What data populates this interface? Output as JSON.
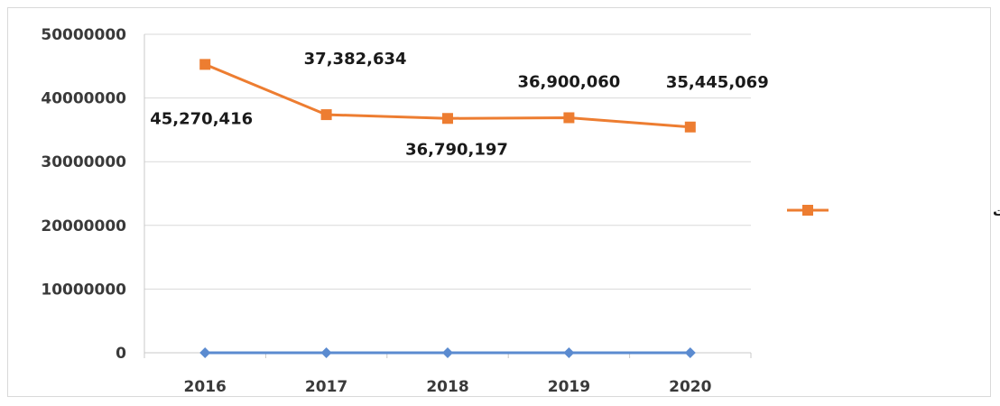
{
  "chart_data": {
    "type": "line",
    "categories": [
      "2016",
      "2017",
      "2018",
      "2019",
      "2020"
    ],
    "ylim": [
      0,
      50000000
    ],
    "y_ticks": [
      "0",
      "10000000",
      "20000000",
      "30000000",
      "40000000",
      "50000000"
    ],
    "grid": true,
    "legend_position": "right",
    "series": [
      {
        "name": "مجموع الموجودات",
        "color": "#ed7d31",
        "marker": "square",
        "values": [
          45270416,
          37382634,
          36790197,
          36900060,
          35445069
        ],
        "labels": [
          "45,270,416",
          "37,382,634",
          "36,790,197",
          "36,900,060",
          "35,445,069"
        ]
      },
      {
        "color": "#5b8bd0",
        "marker": "diamond",
        "values": [
          0,
          0,
          0,
          0,
          0
        ]
      }
    ]
  }
}
